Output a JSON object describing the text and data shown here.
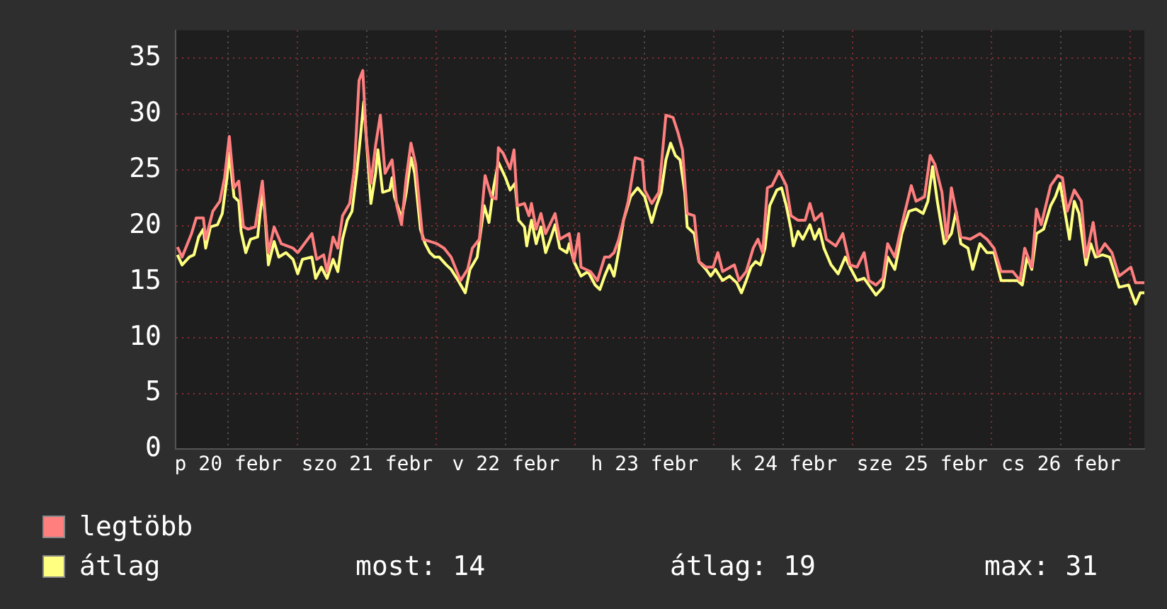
{
  "chart_data": {
    "type": "line",
    "xlim": [
      "--02-20T02:53",
      "--02-27T02:24"
    ],
    "ylim": [
      0,
      37.5
    ],
    "xticks": [
      {
        "value": "--02-20T12:00",
        "label": "p 20 febr"
      },
      {
        "value": "--02-21",
        "label": null
      },
      {
        "value": "--02-21T12:00",
        "label": "szo 21 febr"
      },
      {
        "value": "--02-22",
        "label": null
      },
      {
        "value": "--02-22T12:00",
        "label": "v 22 febr"
      },
      {
        "value": "--02-23",
        "label": null
      },
      {
        "value": "--02-23T12:00",
        "label": "h 23 febr"
      },
      {
        "value": "--02-24",
        "label": null
      },
      {
        "value": "--02-24T12:00",
        "label": "k 24 febr"
      },
      {
        "value": "--02-25",
        "label": null
      },
      {
        "value": "--02-25T12:00",
        "label": "sze 25 febr"
      },
      {
        "value": "--02-26",
        "label": null
      },
      {
        "value": "--02-26T12:00",
        "label": "cs 26 febr"
      },
      {
        "value": "--02-27",
        "label": null
      }
    ],
    "yticks": [
      0,
      5,
      10,
      15,
      20,
      25,
      30,
      35
    ],
    "grid": true,
    "legend": "bottom",
    "marker": "none",
    "line_style": "solid",
    "annotations": [
      "most: 14",
      "átlag: 19",
      "max: 31"
    ],
    "series": [
      {
        "name": "legtöbb",
        "color": "#ff7f7f",
        "x": [
          "--02-20T03:12",
          "--02-20T04:00",
          "--02-20T05:38",
          "--02-20T06:27",
          "--02-20T07:41",
          "--02-20T08:05",
          "--02-20T09:19",
          "--02-20T10:32",
          "--02-20T11:21",
          "--02-20T12:10",
          "--02-20T12:59",
          "--02-20T13:48",
          "--02-20T14:37",
          "--02-20T15:26",
          "--02-20T16:39",
          "--02-20T17:53",
          "--02-20T18:56",
          "--02-20T19:55",
          "--02-20T21:09",
          "--02-20T23:11",
          "--02-21T00:00",
          "--02-21T02:27",
          "--02-21T03:16",
          "--02-21T04:29",
          "--02-21T05:04",
          "--02-21T06:07",
          "--02-21T06:56",
          "--02-21T07:45",
          "--02-21T08:59",
          "--02-21T09:48",
          "--02-21T10:36",
          "--02-21T11:15",
          "--02-21T11:50",
          "--02-21T12:39",
          "--02-21T13:28",
          "--02-21T14:17",
          "--02-21T15:06",
          "--02-21T16:19",
          "--02-21T17:08",
          "--02-21T17:57",
          "--02-21T18:46",
          "--02-21T19:35",
          "--02-21T20:24",
          "--02-21T21:37",
          "--02-21T22:51",
          "--02-22T00:04",
          "--02-22T01:18",
          "--02-22T02:31",
          "--02-22T04:09",
          "--02-22T05:23",
          "--02-22T06:12",
          "--02-22T07:25",
          "--02-22T08:24",
          "--02-22T09:29",
          "--02-22T10:18",
          "--02-22T10:42",
          "--02-22T11:31",
          "--02-22T12:43",
          "--02-22T13:24",
          "--02-22T13:58",
          "--02-22T15:12",
          "--02-22T16:00",
          "--02-22T16:25",
          "--02-22T17:14",
          "--02-22T18:03",
          "--02-22T18:52",
          "--02-22T20:30",
          "--02-22T21:19",
          "--02-22T22:57",
          "--02-22T23:46",
          "--02-23T00:35",
          "--02-23T00:59",
          "--02-23T02:37",
          "--02-23T03:50",
          "--02-23T05:04",
          "--02-23T05:53",
          "--02-23T06:42",
          "--02-23T07:31",
          "--02-23T09:09",
          "--02-23T10:22",
          "--02-23T11:36",
          "--02-23T12:00",
          "--02-23T13:13",
          "--02-23T14:27",
          "--02-23T15:40",
          "--02-23T16:54",
          "--02-23T17:43",
          "--02-23T18:32",
          "--02-23T19:21",
          "--02-23T20:34",
          "--02-23T21:23",
          "--02-23T22:36",
          "--02-23T23:50",
          "--02-24T00:39",
          "--02-24T01:28",
          "--02-24T03:30",
          "--02-24T04:19",
          "--02-24T05:33",
          "--02-24T06:46",
          "--02-24T07:35",
          "--02-24T08:24",
          "--02-24T09:13",
          "--02-24T10:02",
          "--02-24T11:15",
          "--02-24T12:29",
          "--02-24T13:18",
          "--02-24T14:31",
          "--02-24T15:45",
          "--02-24T16:34",
          "--02-24T17:23",
          "--02-24T18:36",
          "--02-24T19:25",
          "--02-24T21:03",
          "--02-24T22:16",
          "--02-24T23:30",
          "--02-25T00:43",
          "--02-25T01:57",
          "--02-25T02:46",
          "--02-25T03:59",
          "--02-25T05:12",
          "--02-25T06:01",
          "--02-25T07:15",
          "--02-25T08:28",
          "--02-25T10:06",
          "--02-25T10:55",
          "--02-25T12:23",
          "--02-25T13:22",
          "--02-25T14:11",
          "--02-25T15:24",
          "--02-25T16:13",
          "--02-25T17:02",
          "--02-25T17:51",
          "--02-25T18:40",
          "--02-25T20:18",
          "--02-25T21:58",
          "--02-25T23:11",
          "--02-26T00:24",
          "--02-26T01:38",
          "--02-26T03:40",
          "--02-26T04:54",
          "--02-26T05:43",
          "--02-26T06:56",
          "--02-26T07:45",
          "--02-26T08:34",
          "--02-26T10:12",
          "--02-26T11:25",
          "--02-26T12:14",
          "--02-26T13:03",
          "--02-26T14:17",
          "--02-26T15:30",
          "--02-26T16:19",
          "--02-26T17:33",
          "--02-26T18:22",
          "--02-26T19:35",
          "--02-26T20:48",
          "--02-26T22:02",
          "--02-27T00:04",
          "--02-27T00:53",
          "--02-27T02:24"
        ],
        "values": [
          18.1,
          17.2,
          19.3,
          20.7,
          20.7,
          18.8,
          21.3,
          22.2,
          24.3,
          28.0,
          23.4,
          24.0,
          19.9,
          19.7,
          19.9,
          24.0,
          17.6,
          19.9,
          18.4,
          18.0,
          17.6,
          19.3,
          17.0,
          17.4,
          15.9,
          19.0,
          18.0,
          20.9,
          22.0,
          25.1,
          33.0,
          33.9,
          28.0,
          23.8,
          27.2,
          29.9,
          24.7,
          25.9,
          21.8,
          20.1,
          24.3,
          27.4,
          25.5,
          18.8,
          18.6,
          18.4,
          18.0,
          17.2,
          15.1,
          16.1,
          18.0,
          18.8,
          24.5,
          22.6,
          22.4,
          27.0,
          26.5,
          25.1,
          26.8,
          21.8,
          22.0,
          20.9,
          22.0,
          19.7,
          21.1,
          19.3,
          21.1,
          18.8,
          19.3,
          16.8,
          19.3,
          16.3,
          15.9,
          15.1,
          17.2,
          17.2,
          17.6,
          18.8,
          22.2,
          26.1,
          25.9,
          23.2,
          22.0,
          23.0,
          29.9,
          29.7,
          28.4,
          26.8,
          21.1,
          20.9,
          16.8,
          16.3,
          16.3,
          17.6,
          15.9,
          16.5,
          15.1,
          15.9,
          18.0,
          18.8,
          17.6,
          23.4,
          23.6,
          24.9,
          23.6,
          20.9,
          20.5,
          20.5,
          22.0,
          20.5,
          21.1,
          18.8,
          18.2,
          19.3,
          16.5,
          16.3,
          17.6,
          15.1,
          14.7,
          15.3,
          18.4,
          17.2,
          20.1,
          23.6,
          22.2,
          22.6,
          26.3,
          25.5,
          23.0,
          18.8,
          23.4,
          21.3,
          19.0,
          18.8,
          19.3,
          18.8,
          18.0,
          15.9,
          15.9,
          15.1,
          18.0,
          16.3,
          21.5,
          20.1,
          23.6,
          24.5,
          24.3,
          21.3,
          23.2,
          22.2,
          17.2,
          20.3,
          17.4,
          18.4,
          17.6,
          15.5,
          16.3,
          14.9,
          14.9
        ]
      },
      {
        "name": "átlag",
        "color": "#ffff80",
        "x": [
          "--02-20T03:12",
          "--02-20T04:00",
          "--02-20T05:14",
          "--02-20T06:03",
          "--02-20T06:52",
          "--02-20T07:41",
          "--02-20T08:05",
          "--02-20T08:54",
          "--02-20T10:08",
          "--02-20T10:57",
          "--02-20T11:46",
          "--02-20T12:10",
          "--02-20T12:59",
          "--02-20T13:48",
          "--02-20T14:12",
          "--02-20T15:01",
          "--02-20T15:50",
          "--02-20T17:04",
          "--02-20T17:53",
          "--02-20T18:17",
          "--02-20T18:56",
          "--02-20T19:55",
          "--02-20T20:44",
          "--02-20T21:58",
          "--02-20T23:11",
          "--02-21T00:00",
          "--02-21T00:49",
          "--02-21T02:27",
          "--02-21T03:06",
          "--02-21T04:05",
          "--02-21T05:04",
          "--02-21T06:07",
          "--02-21T06:56",
          "--02-21T07:45",
          "--02-21T08:34",
          "--02-21T09:23",
          "--02-21T10:12",
          "--02-21T10:51",
          "--02-21T11:25",
          "--02-21T12:14",
          "--02-21T12:39",
          "--02-21T13:28",
          "--02-21T13:52",
          "--02-21T14:41",
          "--02-21T15:55",
          "--02-21T16:19",
          "--02-21T16:44",
          "--02-21T17:57",
          "--02-21T18:46",
          "--02-21T19:35",
          "--02-21T20:14",
          "--02-21T21:13",
          "--02-21T22:02",
          "--02-21T22:51",
          "--02-21T23:40",
          "--02-22T00:29",
          "--02-22T01:42",
          "--02-22T02:31",
          "--02-22T03:45",
          "--02-22T04:58",
          "--02-22T05:47",
          "--02-22T07:02",
          "--02-22T08:15",
          "--02-22T09:04",
          "--02-22T09:52",
          "--02-22T10:42",
          "--02-22T11:56",
          "--02-22T12:43",
          "--02-22T13:34",
          "--02-22T14:12",
          "--02-22T15:12",
          "--02-22T15:36",
          "--02-22T16:25",
          "--02-22T17:14",
          "--02-22T18:03",
          "--02-22T18:52",
          "--02-22T19:41",
          "--02-22T20:30",
          "--02-22T21:19",
          "--02-22T22:32",
          "--02-22T22:57",
          "--02-22T23:46",
          "--02-23T00:59",
          "--02-23T02:12",
          "--02-23T03:26",
          "--02-23T04:15",
          "--02-23T05:04",
          "--02-23T05:53",
          "--02-23T06:42",
          "--02-23T07:31",
          "--02-23T08:20",
          "--02-23T09:33",
          "--02-23T10:47",
          "--02-23T12:00",
          "--02-23T13:13",
          "--02-23T14:02",
          "--02-23T14:51",
          "--02-23T15:40",
          "--02-23T16:29",
          "--02-23T17:18",
          "--02-23T18:07",
          "--02-23T18:56",
          "--02-23T19:21",
          "--02-23T20:34",
          "--02-23T21:23",
          "--02-23T22:36",
          "--02-23T23:25",
          "--02-24T00:14",
          "--02-24T01:28",
          "--02-24T02:41",
          "--02-24T03:55",
          "--02-24T04:44",
          "--02-24T05:33",
          "--02-24T06:22",
          "--02-24T07:11",
          "--02-24T08:00",
          "--02-24T08:48",
          "--02-24T09:37",
          "--02-24T10:51",
          "--02-24T11:40",
          "--02-24T12:29",
          "--02-24T13:18",
          "--02-24T13:42",
          "--02-24T14:31",
          "--02-24T15:20",
          "--02-24T16:34",
          "--02-24T17:23",
          "--02-24T18:12",
          "--02-24T19:00",
          "--02-24T20:14",
          "--02-24T21:27",
          "--02-24T22:41",
          "--02-24T23:30",
          "--02-25T00:43",
          "--02-25T01:57",
          "--02-25T03:59",
          "--02-25T05:12",
          "--02-25T06:01",
          "--02-25T07:15",
          "--02-25T08:28",
          "--02-25T09:42",
          "--02-25T10:55",
          "--02-25T12:09",
          "--02-25T12:58",
          "--02-25T13:47",
          "--02-25T14:36",
          "--02-25T15:49",
          "--02-25T17:02",
          "--02-25T17:51",
          "--02-25T18:40",
          "--02-25T19:54",
          "--02-25T20:43",
          "--02-25T21:58",
          "--02-25T23:11",
          "--02-26T00:24",
          "--02-26T01:38",
          "--02-26T03:16",
          "--02-26T04:29",
          "--02-26T05:18",
          "--02-26T06:07",
          "--02-26T06:56",
          "--02-26T07:45",
          "--02-26T08:59",
          "--02-26T10:12",
          "--02-26T11:01",
          "--02-26T11:50",
          "--02-26T12:39",
          "--02-26T13:28",
          "--02-26T14:17",
          "--02-26T15:06",
          "--02-26T16:19",
          "--02-26T17:08",
          "--02-26T17:57",
          "--02-26T19:11",
          "--02-26T20:24",
          "--02-26T22:02",
          "--02-26T23:40",
          "--02-27T00:53",
          "--02-27T01:42",
          "--02-27T02:24"
        ],
        "values": [
          17.4,
          16.5,
          17.2,
          17.4,
          19.0,
          19.7,
          18.0,
          19.9,
          20.1,
          21.1,
          24.3,
          26.5,
          22.6,
          22.2,
          19.5,
          17.6,
          18.8,
          19.0,
          23.0,
          21.3,
          16.5,
          18.6,
          17.2,
          17.6,
          17.0,
          15.7,
          17.0,
          17.2,
          15.3,
          16.3,
          15.3,
          17.0,
          15.9,
          18.8,
          20.5,
          21.3,
          24.7,
          28.0,
          31.1,
          25.1,
          22.0,
          24.7,
          26.8,
          23.0,
          23.2,
          24.3,
          22.6,
          20.7,
          23.0,
          26.1,
          24.7,
          19.7,
          18.4,
          17.6,
          17.2,
          17.2,
          16.5,
          16.1,
          15.1,
          14.0,
          16.1,
          17.2,
          21.8,
          20.3,
          23.4,
          25.7,
          24.3,
          23.2,
          23.8,
          20.5,
          19.9,
          18.2,
          20.5,
          18.4,
          19.9,
          17.6,
          18.8,
          20.1,
          18.0,
          17.6,
          18.4,
          16.8,
          15.5,
          15.9,
          14.7,
          14.3,
          15.5,
          16.5,
          15.5,
          17.8,
          20.5,
          22.6,
          23.4,
          22.6,
          20.3,
          21.8,
          23.0,
          25.9,
          27.4,
          26.3,
          25.9,
          23.0,
          19.9,
          19.3,
          16.8,
          16.1,
          15.5,
          16.1,
          15.1,
          15.5,
          14.9,
          14.0,
          15.1,
          16.3,
          16.8,
          16.5,
          18.0,
          21.8,
          23.2,
          23.4,
          21.8,
          19.7,
          18.2,
          19.5,
          18.8,
          20.1,
          18.8,
          19.7,
          18.0,
          16.5,
          15.7,
          17.2,
          16.3,
          15.1,
          15.3,
          13.8,
          14.5,
          17.2,
          16.1,
          19.3,
          21.3,
          21.5,
          21.1,
          22.2,
          25.3,
          22.2,
          18.4,
          19.3,
          21.3,
          18.4,
          18.0,
          16.1,
          18.4,
          17.6,
          17.6,
          15.1,
          15.1,
          15.1,
          14.7,
          17.2,
          16.1,
          19.3,
          19.7,
          21.8,
          22.6,
          23.8,
          21.3,
          18.8,
          22.2,
          21.1,
          16.5,
          18.4,
          17.2,
          17.4,
          17.2,
          14.5,
          14.7,
          13.0,
          14.0,
          14.0
        ]
      }
    ]
  }
}
